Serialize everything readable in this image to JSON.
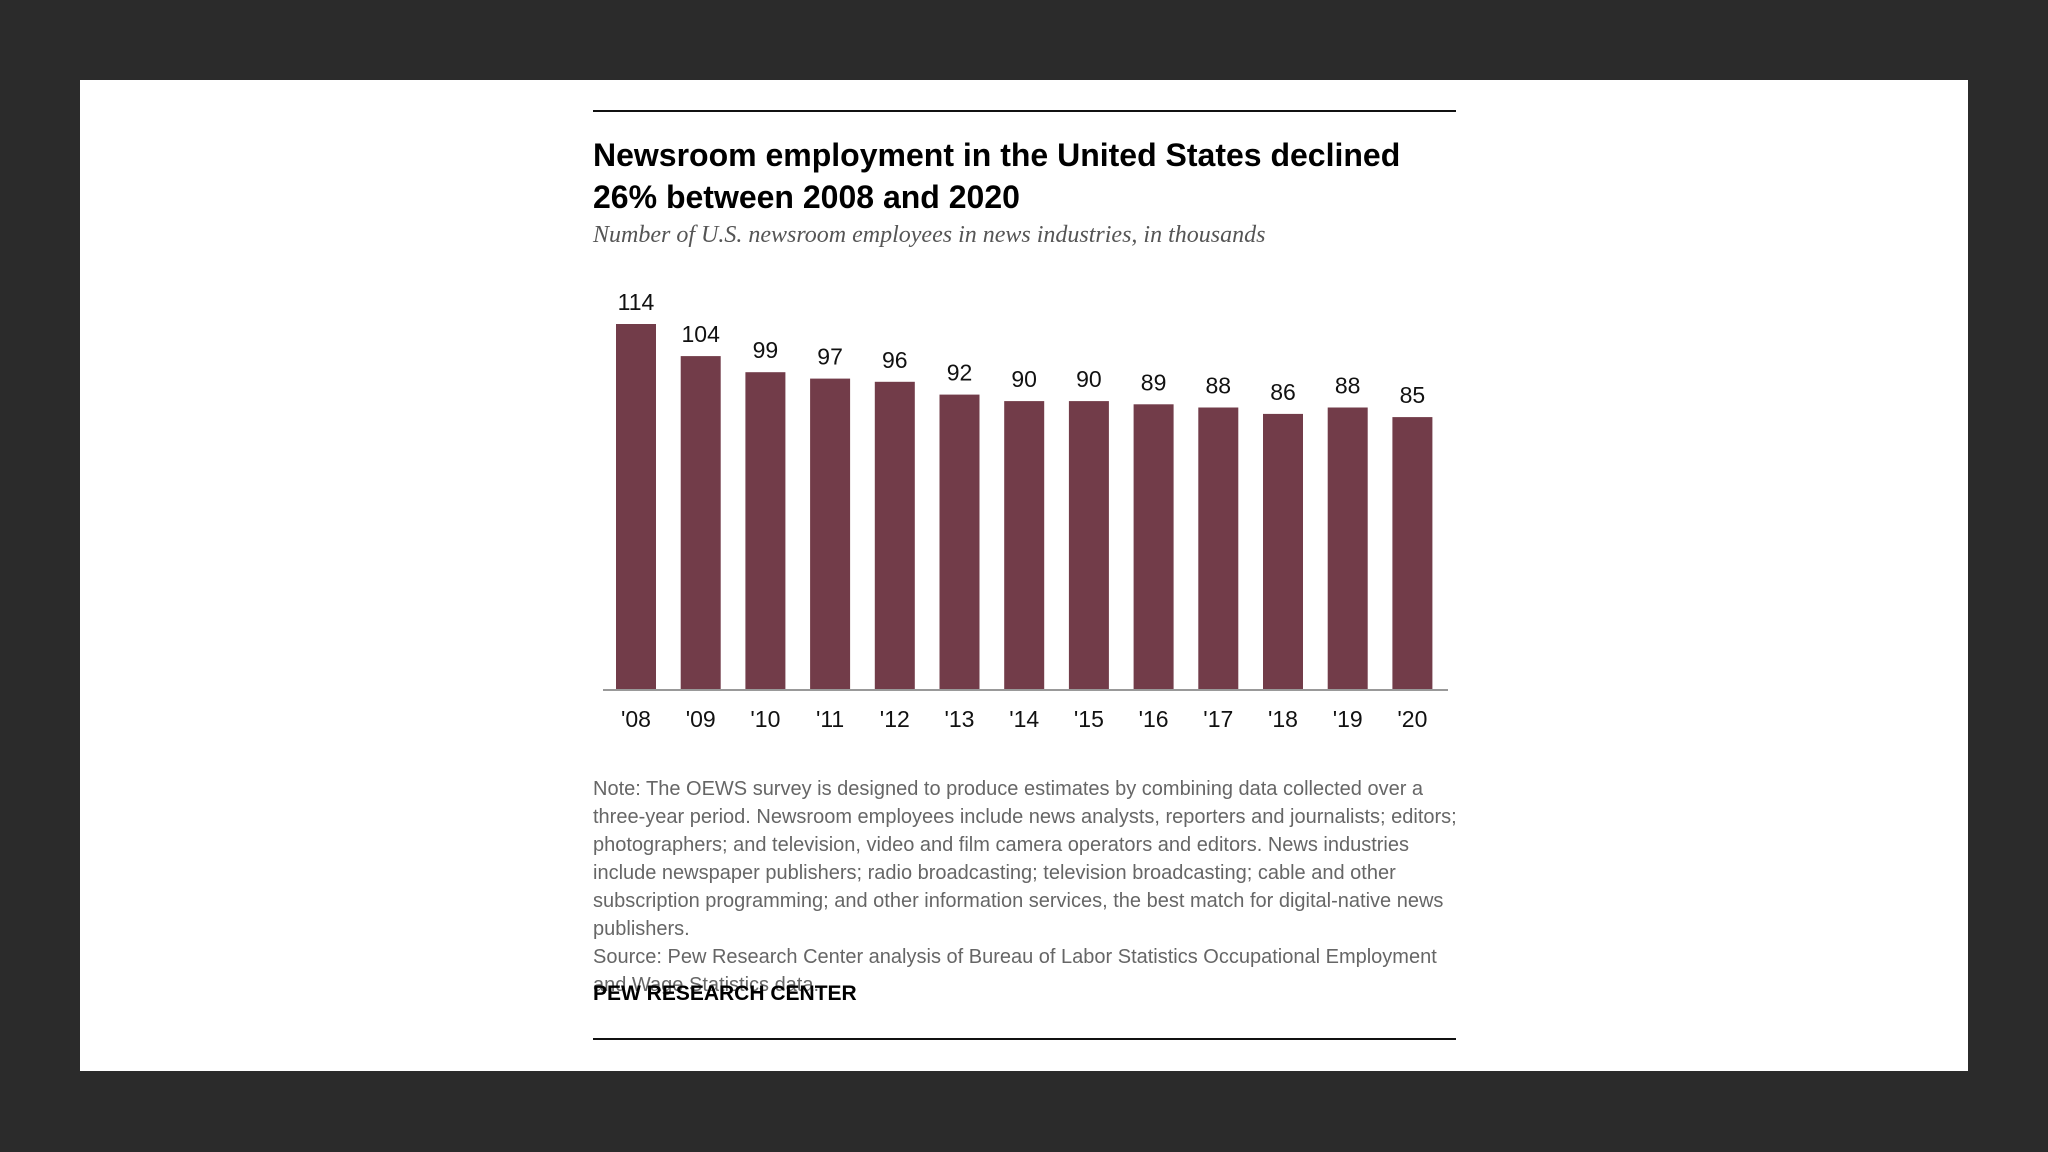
{
  "chart_data": {
    "type": "bar",
    "title": "Newsroom employment in the United States declined 26% between 2008 and 2020",
    "subtitle": "Number of U.S. newsroom employees in news industries, in thousands",
    "categories": [
      "'08",
      "'09",
      "'10",
      "'11",
      "'12",
      "'13",
      "'14",
      "'15",
      "'16",
      "'17",
      "'18",
      "'19",
      "'20"
    ],
    "values": [
      114,
      104,
      99,
      97,
      96,
      92,
      90,
      90,
      89,
      88,
      86,
      88,
      85
    ],
    "value_labels": [
      "114",
      "104",
      "99",
      "97",
      "96",
      "92",
      "90",
      "90",
      "89",
      "88",
      "86",
      "88",
      "85"
    ],
    "xlabel": "",
    "ylabel": "",
    "ylim": [
      0,
      114
    ],
    "grid": false,
    "bar_color": "#723c49"
  },
  "note": "Note: The OEWS survey is designed to produce estimates by combining data collected over a three-year period. Newsroom employees include news analysts, reporters and journalists; editors; photographers; and television, video and film camera operators and editors. News industries include newspaper publishers; radio broadcasting; television broadcasting; cable and other subscription programming; and other information services, the best match for digital-native news publishers.",
  "source": "Source: Pew Research Center analysis of Bureau of Labor Statistics Occupational Employment and Wage Statistics data.",
  "brand": "PEW RESEARCH CENTER",
  "colors": {
    "frame": "#2b2b2b",
    "slide": "#ffffff",
    "text": "#000000",
    "note_text": "#666666"
  }
}
